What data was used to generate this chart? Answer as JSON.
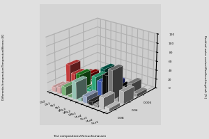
{
  "categories": [
    "Dz2",
    "Dv1",
    "Pk2",
    "Pk1",
    "VMc3",
    "VMc2",
    "VMc1",
    "HLz4",
    "HLz3",
    "HLz2",
    "HLz1"
  ],
  "series_labels": [
    "0.08",
    "0.04",
    "0.005"
  ],
  "group_colors": [
    [
      "#f4c0c0",
      "#dd4444",
      "#aa0000"
    ],
    [
      "#f4c0c0",
      "#dd4444",
      "#aa0000"
    ],
    [
      "#88cc88",
      "#228822",
      "#004400"
    ],
    [
      "#88cc88",
      "#228822",
      "#004400"
    ],
    [
      "#aaddcc",
      "#33bb88",
      "#006655"
    ],
    [
      "#aaddcc",
      "#33bb88",
      "#006655"
    ],
    [
      "#aabbdd",
      "#4466cc",
      "#1122aa"
    ],
    [
      "#333333",
      "#111111",
      "#000000"
    ],
    [
      "#aaaaaa",
      "#888888",
      "#666666"
    ],
    [
      "#dddddd",
      "#bbbbbb",
      "#999999"
    ],
    [
      "#eeeeee",
      "#cccccc",
      "#aaaaaa"
    ]
  ],
  "values": [
    [
      10,
      46,
      10
    ],
    [
      14,
      29,
      14
    ],
    [
      19,
      32,
      2
    ],
    [
      1,
      1,
      1
    ],
    [
      38,
      7,
      38
    ],
    [
      8,
      38,
      9
    ],
    [
      15,
      32,
      15
    ],
    [
      8,
      50,
      8
    ],
    [
      5,
      65,
      5
    ],
    [
      25,
      20,
      25
    ],
    [
      7,
      27,
      7
    ]
  ],
  "ylabel_left": "Differential temperature/Temperaturdifferenz [K]",
  "ylabel_right": "Residual water content/Restfeuchtegehalt [%]",
  "xlabel": "Test compositions/Versuchsmassen",
  "zlim": [
    0,
    120
  ],
  "zticks": [
    0,
    20,
    40,
    60,
    80,
    100,
    120
  ],
  "right_yticks_labels": [
    "0.005",
    "0.04",
    "0.08"
  ],
  "bg_color": "#d4d4d4",
  "pane_color_back": "#d0d0d0",
  "pane_color_side": "#c8c8c8",
  "pane_color_bottom": "#c0c0c0",
  "elev": 22,
  "azim": -50
}
